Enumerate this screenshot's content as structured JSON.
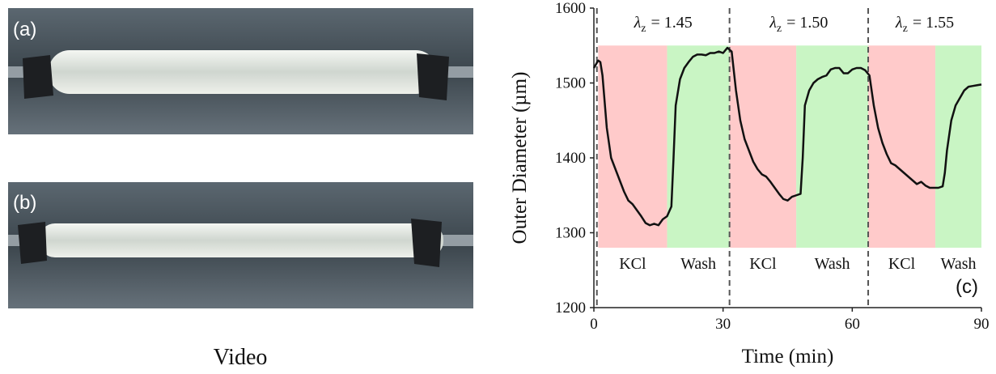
{
  "video": {
    "panels": [
      "(a)",
      "(b)"
    ],
    "caption": "Video"
  },
  "chart_data": {
    "type": "line",
    "panel_label": "(c)",
    "xlabel": "Time (min)",
    "ylabel": "Outer Diameter (µm)",
    "xlim": [
      0,
      90
    ],
    "xticks": [
      0,
      30,
      60,
      90
    ],
    "ylim": [
      1200,
      1600
    ],
    "yticks": [
      1200,
      1300,
      1400,
      1500,
      1600
    ],
    "color": "#111111",
    "shade_ylim": [
      1280,
      1550
    ],
    "phases": [
      {
        "label": "KCl",
        "start": 1,
        "end": 17,
        "color": "#ffcaca"
      },
      {
        "label": "Wash",
        "start": 17,
        "end": 31.5,
        "color": "#c9f5c4"
      },
      {
        "label": "KCl",
        "start": 31.5,
        "end": 47,
        "color": "#ffcaca"
      },
      {
        "label": "Wash",
        "start": 47,
        "end": 63.7,
        "color": "#c9f5c4"
      },
      {
        "label": "KCl",
        "start": 63.7,
        "end": 79.3,
        "color": "#ffcaca"
      },
      {
        "label": "Wash",
        "start": 79.3,
        "end": 90,
        "color": "#c9f5c4"
      }
    ],
    "markers": [
      0.7,
      31.5,
      63.7
    ],
    "stretch_labels": [
      {
        "symbol": "λ",
        "sub": "z",
        "text": "= 1.45"
      },
      {
        "symbol": "λ",
        "sub": "z",
        "text": "= 1.50"
      },
      {
        "symbol": "λ",
        "sub": "z",
        "text": "= 1.55"
      }
    ],
    "x": [
      0,
      0.5,
      1,
      1.5,
      2,
      3,
      4,
      5,
      6,
      7,
      8,
      9,
      10,
      11,
      12,
      13,
      14,
      15,
      16,
      17,
      18,
      18.5,
      19,
      20,
      21,
      22,
      23,
      24,
      25,
      26,
      27,
      28,
      29,
      30,
      31,
      32,
      33,
      34,
      35,
      36,
      37,
      38,
      39,
      40,
      41,
      42,
      43,
      44,
      45,
      46,
      47,
      48,
      48.5,
      49,
      50,
      51,
      52,
      53,
      54,
      55,
      56,
      57,
      58,
      59,
      60,
      61,
      62,
      63,
      64,
      65,
      66,
      67,
      68,
      69,
      70,
      71,
      72,
      73,
      74,
      75,
      76,
      77,
      78,
      79,
      80,
      81,
      81.5,
      82,
      83,
      84,
      85,
      86,
      87,
      88,
      89,
      90
    ],
    "values": [
      1520,
      1525,
      1530,
      1528,
      1510,
      1440,
      1400,
      1385,
      1370,
      1355,
      1343,
      1338,
      1330,
      1322,
      1313,
      1310,
      1312,
      1310,
      1318,
      1322,
      1335,
      1400,
      1470,
      1505,
      1520,
      1528,
      1535,
      1538,
      1538,
      1537,
      1540,
      1540,
      1542,
      1540,
      1547,
      1542,
      1490,
      1450,
      1425,
      1410,
      1395,
      1385,
      1378,
      1375,
      1368,
      1360,
      1352,
      1345,
      1343,
      1348,
      1350,
      1352,
      1400,
      1470,
      1490,
      1500,
      1505,
      1508,
      1510,
      1518,
      1520,
      1520,
      1513,
      1513,
      1518,
      1520,
      1520,
      1517,
      1510,
      1470,
      1440,
      1420,
      1405,
      1393,
      1390,
      1385,
      1380,
      1375,
      1370,
      1365,
      1368,
      1363,
      1360,
      1360,
      1360,
      1362,
      1380,
      1410,
      1450,
      1470,
      1480,
      1490,
      1495,
      1496,
      1497,
      1498
    ]
  }
}
